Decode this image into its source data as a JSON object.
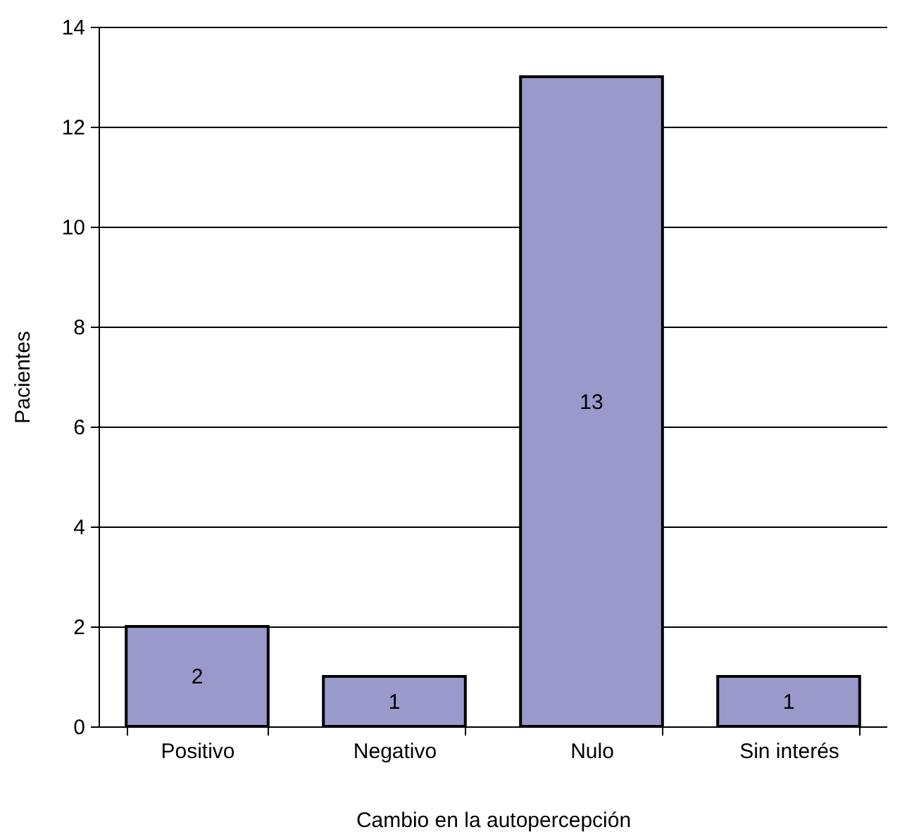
{
  "chart_data": {
    "type": "bar",
    "xlabel": "Cambio en la autopercepción",
    "ylabel": "Pacientes",
    "categories": [
      "Positivo",
      "Negativo",
      "Nulo",
      "Sin interés"
    ],
    "values": [
      2,
      1,
      13,
      1
    ],
    "color": "#9999cc",
    "ylim": [
      0,
      14
    ],
    "yticks": [
      0,
      2,
      4,
      6,
      8,
      10,
      12,
      14
    ],
    "grid": "y",
    "data_labels": true
  }
}
